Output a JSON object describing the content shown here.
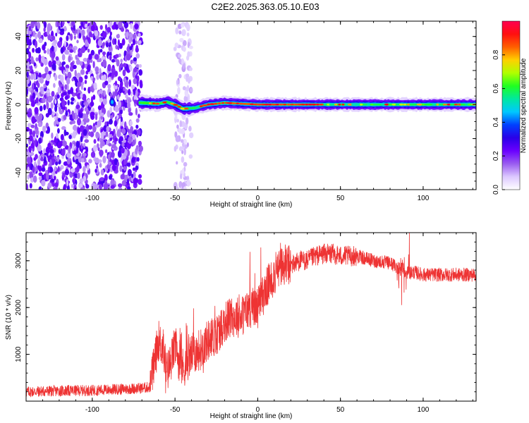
{
  "figure": {
    "title": "C2E2.2025.363.05.10.E03"
  },
  "chart_data": [
    {
      "type": "heatmap",
      "id": "spectrogram",
      "xlabel": "Height of straight line (km)",
      "ylabel": "Frequency (Hz)",
      "xlim": [
        -140,
        132
      ],
      "ylim": [
        -50,
        49
      ],
      "xticks": [
        -100,
        -50,
        0,
        50,
        100
      ],
      "yticks": [
        -40,
        -20,
        0,
        20,
        40
      ],
      "colorbar": {
        "label": "Normalized spectral amplitude",
        "range": [
          0,
          1
        ],
        "ticks": [
          0.0,
          0.2,
          0.4,
          0.6,
          0.8
        ],
        "colors": [
          "#ffffff",
          "#dcc8ff",
          "#9a5cf0",
          "#6a00ff",
          "#2a00e8",
          "#0040ff",
          "#00c8ff",
          "#00e8a0",
          "#20ff20",
          "#b0ff00",
          "#ffd000",
          "#ff6000",
          "#ff1010",
          "#ff0050"
        ]
      },
      "ridge": [
        {
          "x": -140,
          "f": 0.0
        },
        {
          "x": -88,
          "f": 1.5
        },
        {
          "x": -70,
          "f": 1.0
        },
        {
          "x": -60,
          "f": 0.5
        },
        {
          "x": -55,
          "f": 1.5
        },
        {
          "x": -50,
          "f": 0.0
        },
        {
          "x": -45,
          "f": -2.5
        },
        {
          "x": -38,
          "f": -2.0
        },
        {
          "x": -30,
          "f": 0.0
        },
        {
          "x": -20,
          "f": 1.0
        },
        {
          "x": -10,
          "f": 0.5
        },
        {
          "x": 0,
          "f": 0.0
        },
        {
          "x": 50,
          "f": 0.0
        },
        {
          "x": 132,
          "f": 0.0
        }
      ]
    },
    {
      "type": "line",
      "id": "snr",
      "xlabel": "Height of straight line (km)",
      "ylabel": "SNR (10 * v/v)",
      "xlim": [
        -140,
        132
      ],
      "ylim": [
        0,
        3600
      ],
      "xticks": [
        -100,
        -50,
        0,
        50,
        100
      ],
      "yticks": [
        1000,
        2000,
        3000
      ],
      "color": "#ee3333",
      "series": [
        {
          "x": [
            -140,
            -120,
            -100,
            -80,
            -70,
            -65,
            -62,
            -60,
            -57,
            -55,
            -52,
            -50,
            -47,
            -45,
            -42,
            -40,
            -35,
            -30,
            -25,
            -20,
            -15,
            -10,
            -5,
            0,
            5,
            10,
            15,
            20,
            25,
            30,
            35,
            40,
            45,
            50,
            55,
            60,
            70,
            80,
            85,
            88,
            90,
            95,
            100,
            110,
            120,
            132
          ],
          "y": [
            200,
            220,
            230,
            260,
            280,
            300,
            900,
            1300,
            1100,
            600,
            900,
            1200,
            800,
            700,
            900,
            1000,
            1100,
            1300,
            1400,
            1700,
            1800,
            1800,
            2000,
            2000,
            2400,
            2700,
            2900,
            2900,
            3000,
            3000,
            3100,
            3150,
            3150,
            3100,
            3100,
            3100,
            3000,
            2950,
            2850,
            2800,
            2750,
            2750,
            2700,
            2700,
            2700,
            2700
          ]
        }
      ]
    }
  ]
}
